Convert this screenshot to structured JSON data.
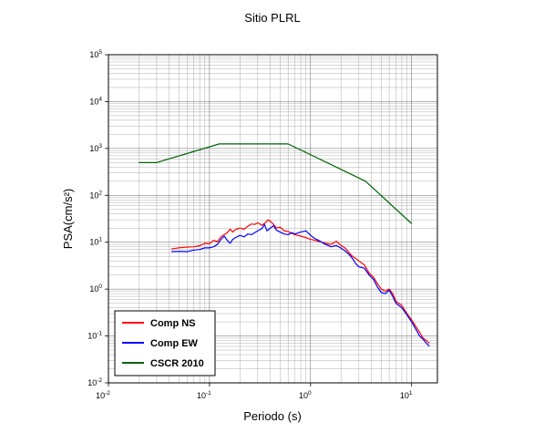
{
  "chart_data": {
    "type": "line",
    "title": "Sitio PLRL",
    "xlabel": "Periodo (s)",
    "ylabel": "PSA(cm/s²)",
    "x_scale": "log",
    "y_scale": "log",
    "xlim": [
      0.01,
      18
    ],
    "ylim": [
      0.01,
      100000
    ],
    "x_ticks": [
      {
        "base": "10",
        "exp": "-2"
      },
      {
        "base": "10",
        "exp": "-1"
      },
      {
        "base": "10",
        "exp": "0"
      },
      {
        "base": "10",
        "exp": "1"
      }
    ],
    "y_ticks": [
      {
        "base": "10",
        "exp": "-2"
      },
      {
        "base": "10",
        "exp": "-1"
      },
      {
        "base": "10",
        "exp": "0"
      },
      {
        "base": "10",
        "exp": "1"
      },
      {
        "base": "10",
        "exp": "2"
      },
      {
        "base": "10",
        "exp": "3"
      },
      {
        "base": "10",
        "exp": "4"
      },
      {
        "base": "10",
        "exp": "5"
      }
    ],
    "grid": true,
    "legend_position": "bottom-left",
    "series": [
      {
        "name": "Comp NS",
        "color": "#ff0000",
        "points": [
          [
            0.042,
            7.2
          ],
          [
            0.05,
            7.6
          ],
          [
            0.06,
            7.9
          ],
          [
            0.07,
            8.0
          ],
          [
            0.08,
            8.4
          ],
          [
            0.09,
            9.5
          ],
          [
            0.1,
            9.3
          ],
          [
            0.11,
            11.0
          ],
          [
            0.12,
            10.3
          ],
          [
            0.13,
            13.0
          ],
          [
            0.14,
            14.5
          ],
          [
            0.15,
            16.0
          ],
          [
            0.16,
            19.0
          ],
          [
            0.17,
            16.5
          ],
          [
            0.18,
            18.5
          ],
          [
            0.2,
            20.0
          ],
          [
            0.22,
            19.0
          ],
          [
            0.24,
            22.0
          ],
          [
            0.26,
            24.5
          ],
          [
            0.28,
            24.0
          ],
          [
            0.3,
            26.0
          ],
          [
            0.33,
            23.0
          ],
          [
            0.36,
            26.5
          ],
          [
            0.38,
            30.0
          ],
          [
            0.4,
            28.0
          ],
          [
            0.43,
            24.0
          ],
          [
            0.46,
            20.0
          ],
          [
            0.5,
            21.0
          ],
          [
            0.55,
            17.5
          ],
          [
            0.6,
            17.0
          ],
          [
            0.65,
            15.5
          ],
          [
            0.7,
            14.5
          ],
          [
            0.8,
            13.5
          ],
          [
            0.9,
            12.5
          ],
          [
            1.0,
            11.5
          ],
          [
            1.1,
            11.0
          ],
          [
            1.2,
            10.5
          ],
          [
            1.4,
            9.5
          ],
          [
            1.6,
            9.0
          ],
          [
            1.8,
            10.5
          ],
          [
            2.0,
            8.5
          ],
          [
            2.2,
            7.5
          ],
          [
            2.4,
            6.0
          ],
          [
            2.6,
            5.0
          ],
          [
            2.8,
            4.5
          ],
          [
            3.0,
            4.0
          ],
          [
            3.4,
            3.3
          ],
          [
            3.8,
            2.2
          ],
          [
            4.2,
            1.8
          ],
          [
            4.6,
            1.3
          ],
          [
            5.0,
            1.0
          ],
          [
            5.5,
            0.9
          ],
          [
            6.0,
            1.0
          ],
          [
            6.5,
            0.8
          ],
          [
            7.0,
            0.55
          ],
          [
            8.0,
            0.45
          ],
          [
            9.0,
            0.3
          ],
          [
            10.0,
            0.22
          ],
          [
            11.0,
            0.16
          ],
          [
            12.0,
            0.12
          ],
          [
            13.0,
            0.09
          ],
          [
            14.0,
            0.08
          ],
          [
            15.0,
            0.07
          ]
        ]
      },
      {
        "name": "Comp EW",
        "color": "#0000ff",
        "points": [
          [
            0.042,
            6.3
          ],
          [
            0.05,
            6.4
          ],
          [
            0.06,
            6.3
          ],
          [
            0.07,
            6.8
          ],
          [
            0.08,
            7.0
          ],
          [
            0.09,
            7.6
          ],
          [
            0.1,
            7.6
          ],
          [
            0.11,
            8.0
          ],
          [
            0.12,
            9.0
          ],
          [
            0.13,
            11.5
          ],
          [
            0.14,
            13.5
          ],
          [
            0.15,
            11.0
          ],
          [
            0.16,
            9.5
          ],
          [
            0.17,
            11.5
          ],
          [
            0.18,
            12.5
          ],
          [
            0.2,
            14.0
          ],
          [
            0.22,
            13.0
          ],
          [
            0.24,
            15.0
          ],
          [
            0.26,
            14.5
          ],
          [
            0.28,
            16.0
          ],
          [
            0.3,
            17.5
          ],
          [
            0.33,
            19.5
          ],
          [
            0.35,
            24.0
          ],
          [
            0.37,
            17.5
          ],
          [
            0.4,
            20.0
          ],
          [
            0.43,
            22.5
          ],
          [
            0.46,
            18.0
          ],
          [
            0.5,
            16.5
          ],
          [
            0.55,
            15.0
          ],
          [
            0.6,
            14.5
          ],
          [
            0.65,
            16.0
          ],
          [
            0.7,
            15.0
          ],
          [
            0.8,
            16.5
          ],
          [
            0.9,
            17.5
          ],
          [
            1.0,
            14.0
          ],
          [
            1.1,
            12.0
          ],
          [
            1.2,
            11.0
          ],
          [
            1.4,
            9.0
          ],
          [
            1.6,
            8.0
          ],
          [
            1.8,
            8.5
          ],
          [
            2.0,
            7.5
          ],
          [
            2.2,
            6.5
          ],
          [
            2.4,
            5.5
          ],
          [
            2.6,
            4.5
          ],
          [
            2.8,
            3.5
          ],
          [
            3.0,
            3.0
          ],
          [
            3.4,
            2.8
          ],
          [
            3.8,
            2.0
          ],
          [
            4.2,
            1.6
          ],
          [
            4.6,
            1.1
          ],
          [
            5.0,
            0.85
          ],
          [
            5.5,
            0.8
          ],
          [
            6.0,
            0.95
          ],
          [
            6.5,
            0.7
          ],
          [
            7.0,
            0.5
          ],
          [
            8.0,
            0.4
          ],
          [
            9.0,
            0.28
          ],
          [
            10.0,
            0.2
          ],
          [
            11.0,
            0.14
          ],
          [
            12.0,
            0.1
          ],
          [
            13.0,
            0.085
          ],
          [
            14.0,
            0.07
          ],
          [
            15.0,
            0.06
          ]
        ]
      },
      {
        "name": "CSCR 2010",
        "color": "#006400",
        "points": [
          [
            0.02,
            500
          ],
          [
            0.03,
            500
          ],
          [
            0.125,
            1250
          ],
          [
            0.6,
            1250
          ],
          [
            3.5,
            200
          ],
          [
            10.0,
            25
          ]
        ]
      }
    ]
  }
}
